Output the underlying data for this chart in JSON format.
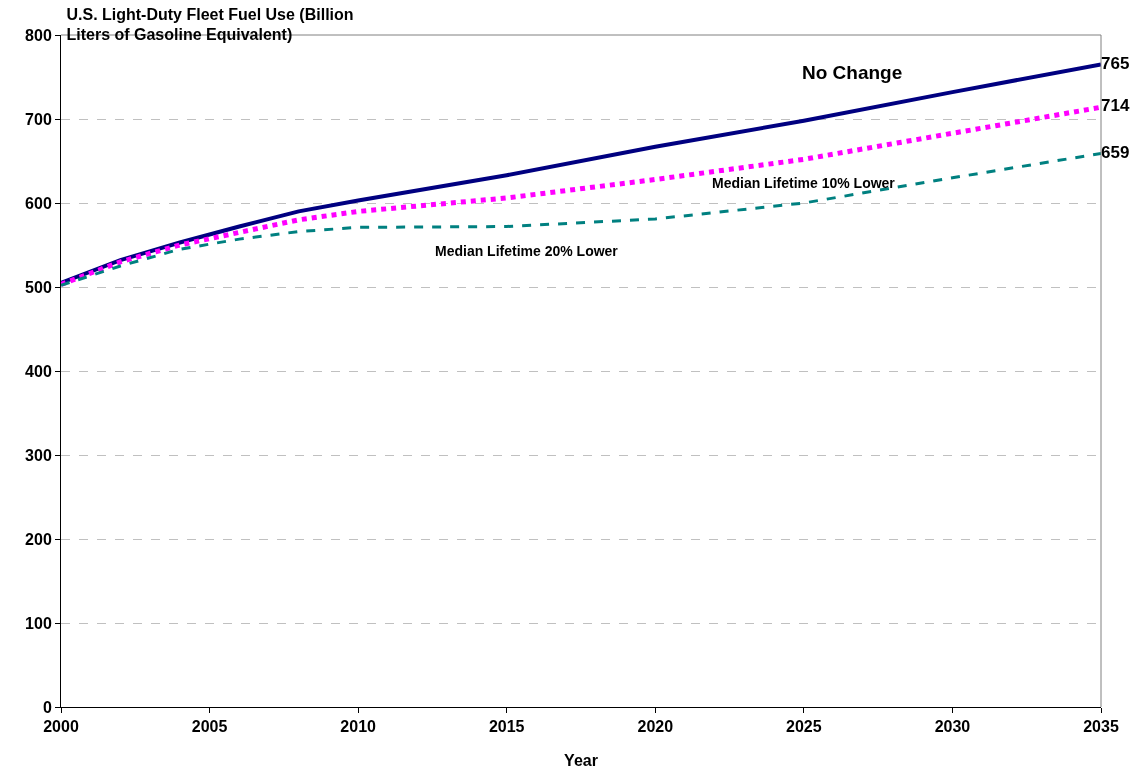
{
  "chart_data": {
    "type": "line",
    "title": "U.S. Light-Duty Fleet Fuel Use (Billion Liters of Gasoline Equivalent)",
    "xlabel": "Year",
    "x": [
      2000,
      2002,
      2004,
      2006,
      2008,
      2010,
      2015,
      2020,
      2025,
      2030,
      2035
    ],
    "series": [
      {
        "name": "No Change",
        "color": "#000080",
        "line_style": "solid",
        "values": [
          505,
          532,
          553,
          572,
          590,
          603,
          633,
          667,
          698,
          732,
          765
        ],
        "value_labels": [
          null,
          null,
          null,
          null,
          null,
          null,
          null,
          null,
          null,
          null,
          "765"
        ]
      },
      {
        "name": "Median Lifetime 10% Lower",
        "color": "#ff00ff",
        "line_style": "dotted",
        "values": [
          503,
          530,
          550,
          565,
          580,
          590,
          606,
          628,
          652,
          683,
          714
        ],
        "value_labels": [
          null,
          null,
          null,
          null,
          null,
          null,
          null,
          null,
          null,
          null,
          "714"
        ]
      },
      {
        "name": "Median Lifetime 20% Lower",
        "color": "#008080",
        "line_style": "dashed",
        "values": [
          502,
          525,
          545,
          557,
          566,
          571,
          572,
          581,
          600,
          630,
          659
        ],
        "value_labels": [
          null,
          null,
          null,
          null,
          null,
          null,
          null,
          null,
          null,
          null,
          "659"
        ]
      }
    ],
    "xlim": [
      2000,
      2035
    ],
    "xticks": [
      2000,
      2005,
      2010,
      2015,
      2020,
      2025,
      2030,
      2035
    ],
    "ylim": [
      0,
      800
    ],
    "yticks": [
      0,
      100,
      200,
      300,
      400,
      500,
      600,
      700,
      800
    ],
    "grid": "y",
    "legend": false,
    "marker": "none"
  }
}
